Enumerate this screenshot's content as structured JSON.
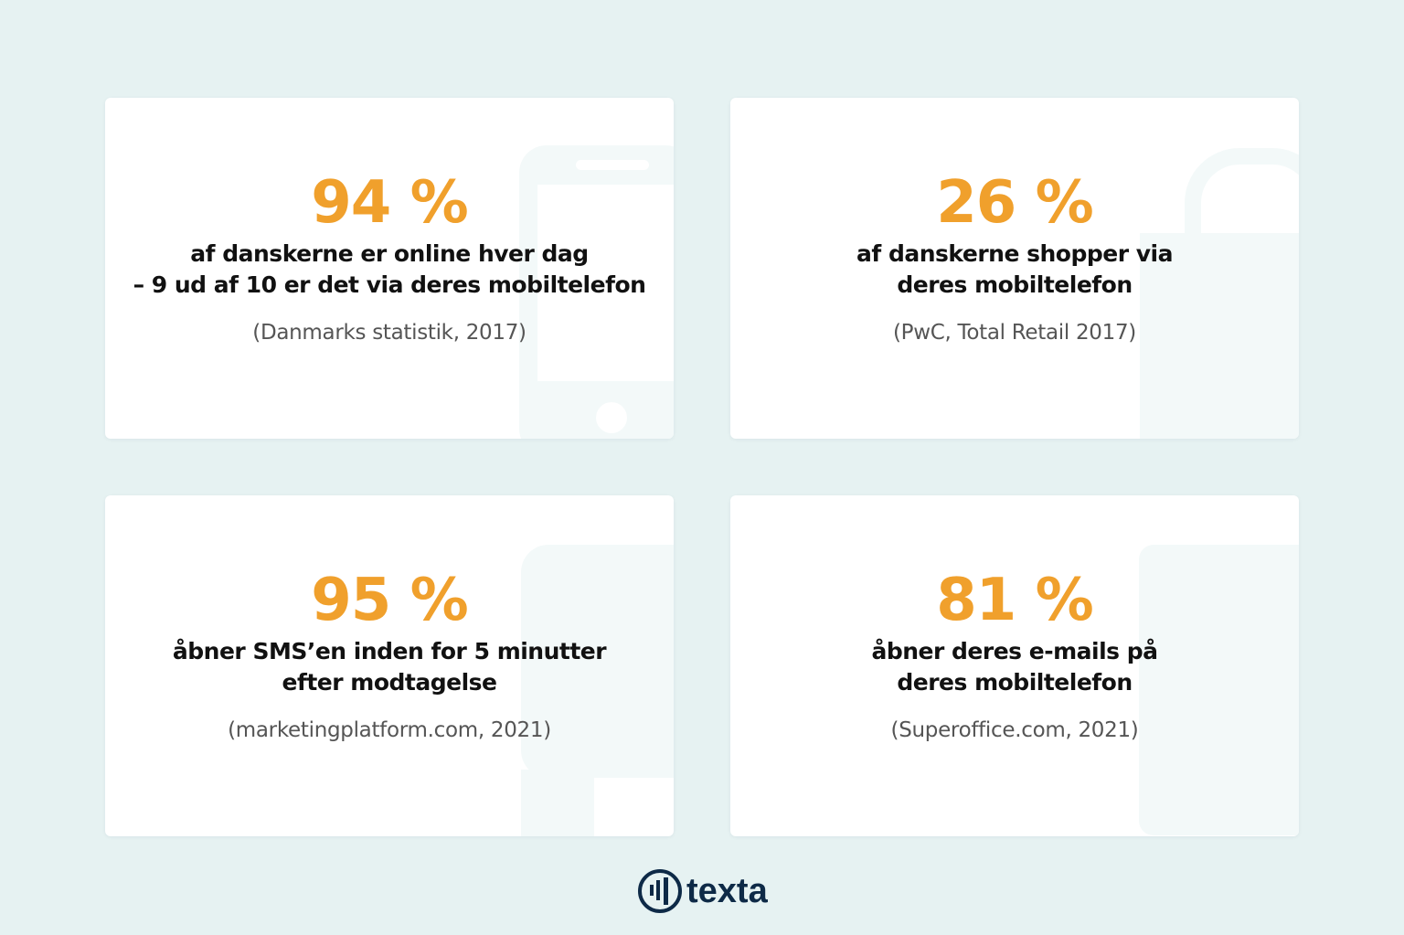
{
  "colors": {
    "accent": "#f0a02c",
    "text": "#111111",
    "source": "#555555",
    "brand": "#0e2a47",
    "background": "#e6f2f2"
  },
  "stats": [
    {
      "value": "94 %",
      "line1": "af danskerne er online hver dag",
      "line2": "– 9 ud af 10 er det via deres mobiltelefon",
      "source": "(Danmarks statistik, 2017)",
      "icon": "smartphone-icon"
    },
    {
      "value": "26 %",
      "line1": "af danskerne shopper via",
      "line2": "deres mobiltelefon",
      "source": "(PwC, Total Retail 2017)",
      "icon": "shopping-bag-icon"
    },
    {
      "value": "95 %",
      "line1": "åbner SMS’en inden for 5 minutter",
      "line2": "efter modtagelse",
      "source": "(marketingplatform.com, 2021)",
      "icon": "chat-bubble-icon"
    },
    {
      "value": "81 %",
      "line1": "åbner deres e-mails på",
      "line2": "deres mobiltelefon",
      "source": "(Superoffice.com, 2021)",
      "icon": "envelope-icon"
    }
  ],
  "logo": {
    "text": "texta"
  }
}
